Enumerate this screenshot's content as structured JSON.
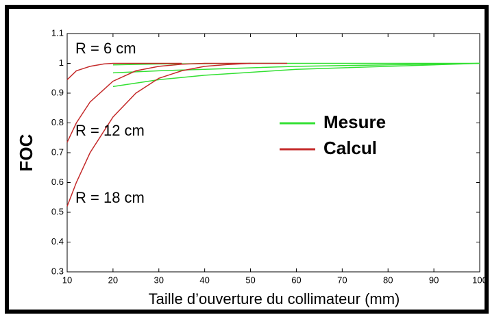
{
  "chart_data": {
    "type": "line",
    "xlabel": "Taille d’ouverture du collimateur (mm)",
    "ylabel": "FOC",
    "xlim": [
      10,
      100
    ],
    "ylim": [
      0.3,
      1.1
    ],
    "xticks": [
      10,
      20,
      30,
      40,
      50,
      60,
      70,
      80,
      90,
      100
    ],
    "yticks": [
      0.3,
      0.4,
      0.5,
      0.6,
      0.7,
      0.8,
      0.9,
      1,
      1.1
    ],
    "annotations": [
      "R = 6 cm",
      "R = 12 cm",
      "R = 18 cm"
    ],
    "series": [
      {
        "name": "Mesure",
        "color": "#33e033",
        "lines": [
          {
            "x": [
              20,
              30,
              50,
              70,
              100
            ],
            "values": [
              0.995,
              0.998,
              1,
              1,
              1
            ]
          },
          {
            "x": [
              20,
              30,
              40,
              60,
              80,
              100
            ],
            "values": [
              0.968,
              0.975,
              0.98,
              0.99,
              0.995,
              1
            ]
          },
          {
            "x": [
              20,
              30,
              40,
              50,
              60,
              80,
              100
            ],
            "values": [
              0.922,
              0.945,
              0.96,
              0.97,
              0.98,
              0.99,
              1
            ]
          }
        ]
      },
      {
        "name": "Calcul",
        "color": "#c42a2a",
        "lines": [
          {
            "x": [
              10,
              12,
              15,
              18,
              20,
              35
            ],
            "values": [
              0.945,
              0.975,
              0.99,
              0.998,
              1,
              1
            ]
          },
          {
            "x": [
              10,
              12,
              15,
              20,
              25,
              30,
              35,
              40,
              50
            ],
            "values": [
              0.735,
              0.8,
              0.87,
              0.94,
              0.975,
              0.99,
              0.997,
              1,
              1
            ]
          },
          {
            "x": [
              10,
              12,
              15,
              20,
              25,
              30,
              35,
              40,
              45,
              50,
              58
            ],
            "values": [
              0.52,
              0.6,
              0.7,
              0.82,
              0.9,
              0.95,
              0.975,
              0.99,
              0.996,
              1,
              1
            ]
          }
        ]
      }
    ]
  }
}
